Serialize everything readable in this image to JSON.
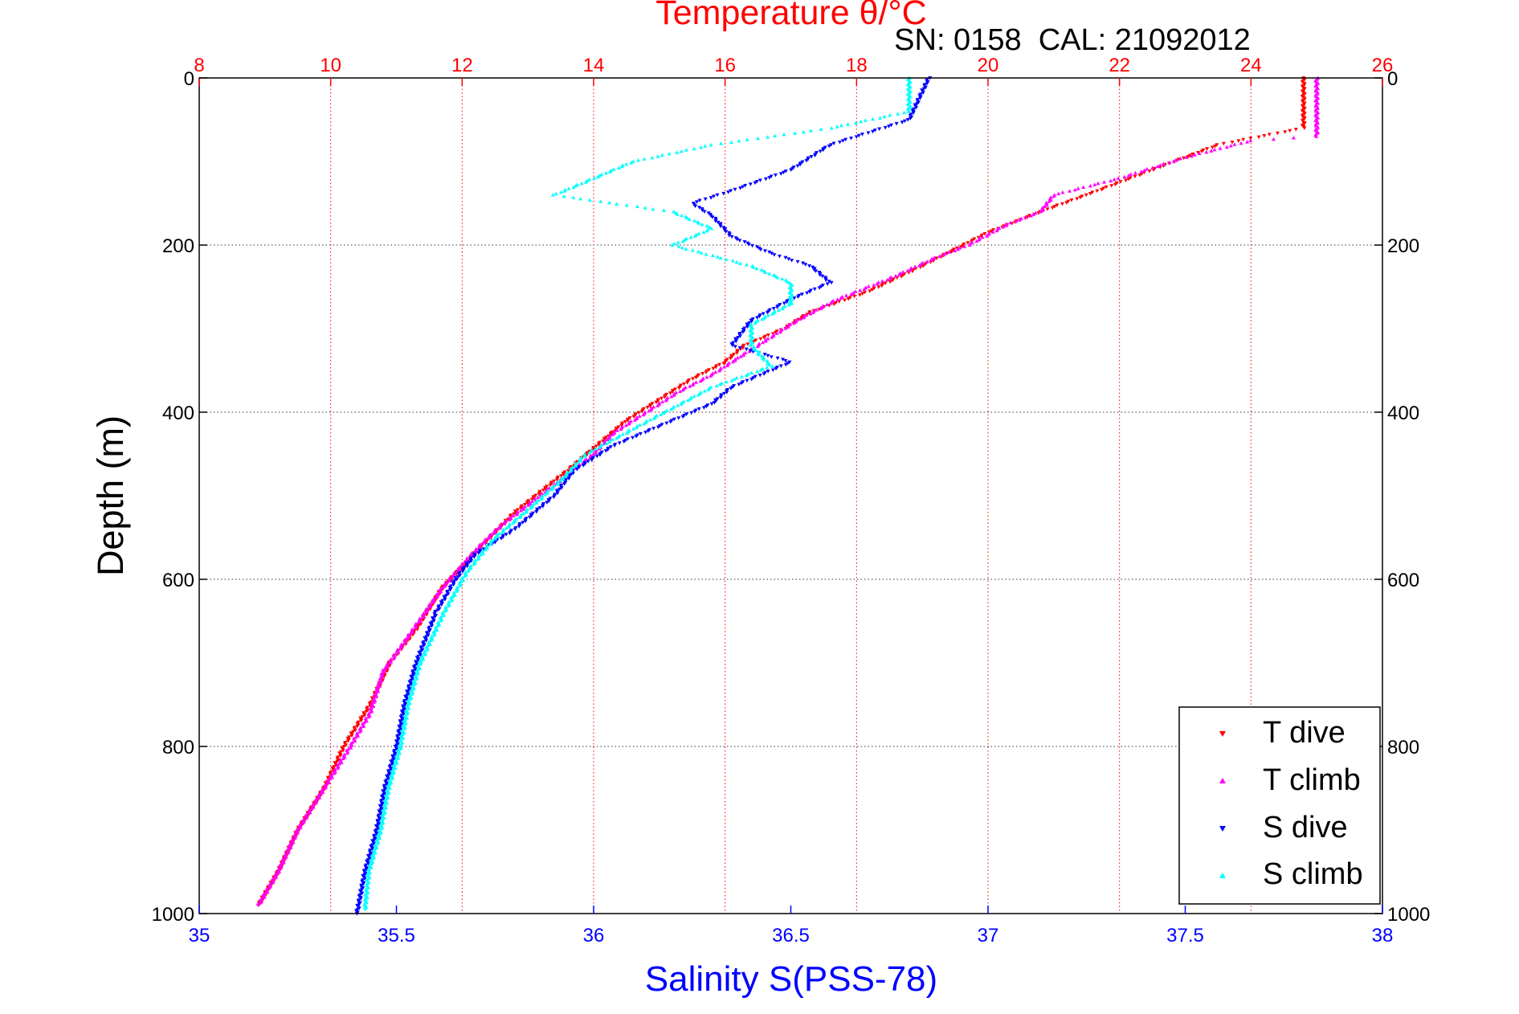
{
  "chart_data": {
    "type": "scatter",
    "title": "Temperature θ/°C",
    "subtitle": "SN: 0158  CAL: 21092012",
    "xlabel": "Salinity S(PSS-78)",
    "x2label": "Temperature θ/°C",
    "ylabel": "Depth (m)",
    "xlim": [
      35,
      38
    ],
    "x2lim": [
      8,
      26
    ],
    "ylim": [
      0,
      1000
    ],
    "y_reversed": true,
    "grid": true,
    "legend_position": "bottom-right",
    "xticks": [
      "35",
      "35.5",
      "36",
      "36.5",
      "37",
      "37.5",
      "38"
    ],
    "x2ticks": [
      "8",
      "10",
      "12",
      "14",
      "16",
      "18",
      "20",
      "22",
      "24",
      "26"
    ],
    "yticks": [
      "0",
      "200",
      "400",
      "600",
      "800",
      "1000"
    ],
    "colors": {
      "salinity_axis": "#0000ff",
      "temperature_axis": "#ff0000",
      "grid_salinity": "#333333",
      "grid_temperature": "#ff0000"
    },
    "series": [
      {
        "name": "T dive",
        "axis": "temperature",
        "marker": "triangle-down",
        "color": "#ff0000",
        "points": [
          [
            24.8,
            0
          ],
          [
            24.8,
            60
          ],
          [
            23.5,
            80
          ],
          [
            22.5,
            110
          ],
          [
            21.5,
            140
          ],
          [
            20.8,
            160
          ],
          [
            20,
            185
          ],
          [
            19.5,
            205
          ],
          [
            19,
            225
          ],
          [
            18.2,
            255
          ],
          [
            17.3,
            280
          ],
          [
            16.9,
            300
          ],
          [
            16.3,
            320
          ],
          [
            16,
            340
          ],
          [
            15.5,
            360
          ],
          [
            15,
            385
          ],
          [
            14.5,
            410
          ],
          [
            14.2,
            430
          ],
          [
            13.9,
            450
          ],
          [
            13.6,
            470
          ],
          [
            13.2,
            495
          ],
          [
            12.8,
            520
          ],
          [
            12.3,
            560
          ],
          [
            11.7,
            610
          ],
          [
            11.3,
            660
          ],
          [
            10.9,
            700
          ],
          [
            10.6,
            750
          ],
          [
            10.2,
            800
          ],
          [
            9.9,
            850
          ],
          [
            9.5,
            900
          ],
          [
            9.2,
            950
          ],
          [
            8.9,
            990
          ]
        ]
      },
      {
        "name": "T climb",
        "axis": "temperature",
        "marker": "triangle-up",
        "color": "#ff00ff",
        "points": [
          [
            25.0,
            0
          ],
          [
            25.0,
            70
          ],
          [
            24.0,
            75
          ],
          [
            23.0,
            95
          ],
          [
            22,
            120
          ],
          [
            21,
            140
          ],
          [
            20.8,
            160
          ],
          [
            20.3,
            175
          ],
          [
            19.7,
            200
          ],
          [
            19.2,
            215
          ],
          [
            18.5,
            240
          ],
          [
            17.7,
            265
          ],
          [
            17.1,
            290
          ],
          [
            16.6,
            315
          ],
          [
            16.2,
            335
          ],
          [
            15.8,
            355
          ],
          [
            15.3,
            375
          ],
          [
            14.8,
            400
          ],
          [
            14.3,
            425
          ],
          [
            14,
            450
          ],
          [
            13.6,
            475
          ],
          [
            13.1,
            505
          ],
          [
            12.6,
            535
          ],
          [
            12.2,
            565
          ],
          [
            11.7,
            610
          ],
          [
            11.3,
            655
          ],
          [
            10.8,
            710
          ],
          [
            10.6,
            760
          ],
          [
            10.3,
            800
          ],
          [
            9.9,
            850
          ],
          [
            9.5,
            900
          ],
          [
            9.2,
            950
          ],
          [
            8.9,
            990
          ]
        ]
      },
      {
        "name": "S dive",
        "axis": "salinity",
        "marker": "triangle-down",
        "color": "#0000ff",
        "points": [
          [
            36.85,
            0
          ],
          [
            36.8,
            50
          ],
          [
            36.6,
            80
          ],
          [
            36.5,
            110
          ],
          [
            36.35,
            135
          ],
          [
            36.25,
            150
          ],
          [
            36.3,
            165
          ],
          [
            36.35,
            190
          ],
          [
            36.45,
            210
          ],
          [
            36.55,
            225
          ],
          [
            36.6,
            245
          ],
          [
            36.5,
            265
          ],
          [
            36.4,
            290
          ],
          [
            36.35,
            320
          ],
          [
            36.5,
            340
          ],
          [
            36.35,
            370
          ],
          [
            36.3,
            390
          ],
          [
            36.2,
            410
          ],
          [
            36.05,
            440
          ],
          [
            35.95,
            470
          ],
          [
            35.9,
            500
          ],
          [
            35.8,
            540
          ],
          [
            35.7,
            570
          ],
          [
            35.65,
            600
          ],
          [
            35.6,
            640
          ],
          [
            35.55,
            700
          ],
          [
            35.52,
            750
          ],
          [
            35.5,
            800
          ],
          [
            35.47,
            850
          ],
          [
            35.45,
            900
          ],
          [
            35.42,
            950
          ],
          [
            35.4,
            1000
          ]
        ]
      },
      {
        "name": "S climb",
        "axis": "salinity",
        "marker": "triangle-up",
        "color": "#00ffff",
        "points": [
          [
            36.8,
            0
          ],
          [
            36.8,
            40
          ],
          [
            36.6,
            60
          ],
          [
            36.3,
            80
          ],
          [
            36.1,
            100
          ],
          [
            36.0,
            120
          ],
          [
            35.9,
            140
          ],
          [
            36.2,
            160
          ],
          [
            36.3,
            180
          ],
          [
            36.2,
            200
          ],
          [
            36.4,
            225
          ],
          [
            36.5,
            245
          ],
          [
            36.5,
            270
          ],
          [
            36.4,
            295
          ],
          [
            36.4,
            320
          ],
          [
            36.45,
            345
          ],
          [
            36.3,
            370
          ],
          [
            36.2,
            395
          ],
          [
            36.1,
            420
          ],
          [
            35.98,
            450
          ],
          [
            35.92,
            480
          ],
          [
            35.85,
            510
          ],
          [
            35.75,
            550
          ],
          [
            35.68,
            590
          ],
          [
            35.62,
            640
          ],
          [
            35.56,
            700
          ],
          [
            35.53,
            750
          ],
          [
            35.51,
            800
          ],
          [
            35.48,
            850
          ],
          [
            35.46,
            900
          ],
          [
            35.43,
            950
          ],
          [
            35.42,
            995
          ]
        ]
      }
    ]
  }
}
